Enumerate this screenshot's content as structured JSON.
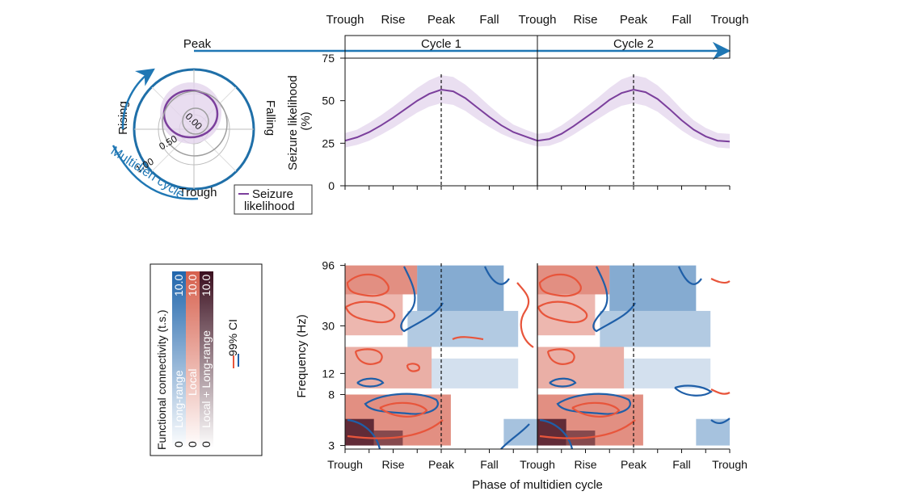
{
  "phase_labels": [
    "Trough",
    "Rise",
    "Peak",
    "Fall",
    "Trough",
    "Rise",
    "Peak",
    "Fall",
    "Trough"
  ],
  "cycles": [
    "Cycle 1",
    "Cycle 2"
  ],
  "colors": {
    "seizure": "#7b3f9c",
    "seizure_band": "#e3d4ec",
    "arrow_blue": "#1f77b4",
    "long_range": "#2166ac",
    "local": "#d6604d",
    "both": "#4a1a2a",
    "contour_blue": "#1f5fa8",
    "contour_red": "#e8553b"
  },
  "polar": {
    "labels": {
      "top": "Peak",
      "bottom": "Trough",
      "left": "Rising",
      "right": "Falling"
    },
    "radial_ticks": [
      "0.00",
      "0.50",
      "1.00"
    ],
    "cycle_label": "Multidien cycle",
    "legend": "Seizure likelihood"
  },
  "chart_data": [
    {
      "type": "line",
      "title": "",
      "ylabel": "Seizure likelihood (%)",
      "ylim": [
        0,
        75
      ],
      "yticks": [
        "0",
        "25",
        "50",
        "75"
      ],
      "x": [
        0,
        0.25,
        0.5,
        0.75,
        1,
        1.25,
        1.5,
        1.75,
        2,
        2.25,
        2.5,
        2.75,
        3,
        3.25,
        3.5,
        3.75,
        4,
        4.25,
        4.5,
        4.75,
        5,
        5.25,
        5.5,
        5.75,
        6,
        6.25,
        6.5,
        6.75,
        7,
        7.25,
        7.5,
        7.75,
        8
      ],
      "series": [
        {
          "values": [
            26.5,
            28.5,
            31.5,
            35.5,
            40,
            45,
            50,
            54,
            56.5,
            55.5,
            51.5,
            46,
            40.5,
            35.5,
            31.5,
            29,
            26.5,
            27.5,
            30.5,
            35,
            40,
            45,
            50.5,
            54.5,
            56.5,
            55,
            51,
            45,
            38.5,
            33,
            29,
            26.5,
            26
          ],
          "lower": [
            22.5,
            24,
            26.5,
            30,
            34,
            38.5,
            43,
            46.5,
            48.5,
            47.5,
            44,
            39,
            34.5,
            30.5,
            27.5,
            25,
            23,
            23.5,
            26,
            30,
            34.5,
            39,
            43.5,
            47,
            48.5,
            47,
            43.5,
            38,
            32.5,
            28,
            25,
            22.5,
            22
          ],
          "upper": [
            31,
            33,
            37,
            41.5,
            46.5,
            52,
            57.5,
            62,
            65,
            64,
            59.5,
            53.5,
            47,
            41,
            36,
            33,
            30.5,
            31.5,
            35.5,
            40.5,
            46,
            51.5,
            57.5,
            62.5,
            65,
            63.5,
            59,
            52.5,
            45,
            38.5,
            34,
            31,
            30.5
          ]
        }
      ]
    },
    {
      "type": "heatmap",
      "ylabel": "Frequency (Hz)",
      "xlabel": "Phase of multidien cycle",
      "yticks": [
        "3",
        "8",
        "12",
        "30",
        "96"
      ],
      "x_categories": [
        "Trough",
        "Rise",
        "Peak",
        "Fall",
        "Trough",
        "Rise",
        "Peak",
        "Fall",
        "Trough"
      ],
      "colorbar": {
        "title": "Functional connectivity (t.s.)",
        "scales": [
          {
            "name": "Long-range",
            "min": "0",
            "max": "10.0"
          },
          {
            "name": "Local",
            "min": "0",
            "max": "10.0"
          },
          {
            "name": "Local + Long-range",
            "min": "0",
            "max": "10.0"
          }
        ],
        "ci_label": "99% CI"
      },
      "blocks": [
        {
          "x": [
            0,
            1.5
          ],
          "y": [
            55,
            96
          ],
          "color": "local",
          "level": 0.7
        },
        {
          "x": [
            1.5,
            3.3
          ],
          "y": [
            40,
            96
          ],
          "color": "long_range",
          "level": 0.55
        },
        {
          "x": [
            0,
            1.2
          ],
          "y": [
            25,
            55
          ],
          "color": "local",
          "level": 0.45
        },
        {
          "x": [
            1.3,
            3.6
          ],
          "y": [
            20,
            40
          ],
          "color": "long_range",
          "level": 0.35
        },
        {
          "x": [
            0,
            1.8
          ],
          "y": [
            9,
            20
          ],
          "color": "local",
          "level": 0.5
        },
        {
          "x": [
            1.8,
            3.6
          ],
          "y": [
            9,
            16
          ],
          "color": "long_range",
          "level": 0.2
        },
        {
          "x": [
            0,
            2.2
          ],
          "y": [
            3,
            8
          ],
          "color": "local",
          "level": 0.7
        },
        {
          "x": [
            0,
            0.6
          ],
          "y": [
            3,
            5
          ],
          "color": "both",
          "level": 0.85
        },
        {
          "x": [
            0.6,
            1.2
          ],
          "y": [
            3,
            4
          ],
          "color": "both",
          "level": 0.6
        },
        {
          "x": [
            3.3,
            4
          ],
          "y": [
            3,
            5
          ],
          "color": "long_range",
          "level": 0.4
        },
        {
          "x": [
            4,
            5.5
          ],
          "y": [
            55,
            96
          ],
          "color": "local",
          "level": 0.7
        },
        {
          "x": [
            5.5,
            7.3
          ],
          "y": [
            40,
            96
          ],
          "color": "long_range",
          "level": 0.55
        },
        {
          "x": [
            4,
            5.2
          ],
          "y": [
            25,
            55
          ],
          "color": "local",
          "level": 0.45
        },
        {
          "x": [
            5.3,
            7.6
          ],
          "y": [
            20,
            40
          ],
          "color": "long_range",
          "level": 0.35
        },
        {
          "x": [
            4,
            5.8
          ],
          "y": [
            9,
            20
          ],
          "color": "local",
          "level": 0.5
        },
        {
          "x": [
            5.8,
            7.6
          ],
          "y": [
            9,
            16
          ],
          "color": "long_range",
          "level": 0.2
        },
        {
          "x": [
            4,
            6.2
          ],
          "y": [
            3,
            8
          ],
          "color": "local",
          "level": 0.7
        },
        {
          "x": [
            4,
            4.6
          ],
          "y": [
            3,
            5
          ],
          "color": "both",
          "level": 0.85
        },
        {
          "x": [
            4.6,
            5.2
          ],
          "y": [
            3,
            4
          ],
          "color": "both",
          "level": 0.6
        },
        {
          "x": [
            7.3,
            8
          ],
          "y": [
            3,
            5
          ],
          "color": "long_range",
          "level": 0.4
        }
      ]
    }
  ]
}
